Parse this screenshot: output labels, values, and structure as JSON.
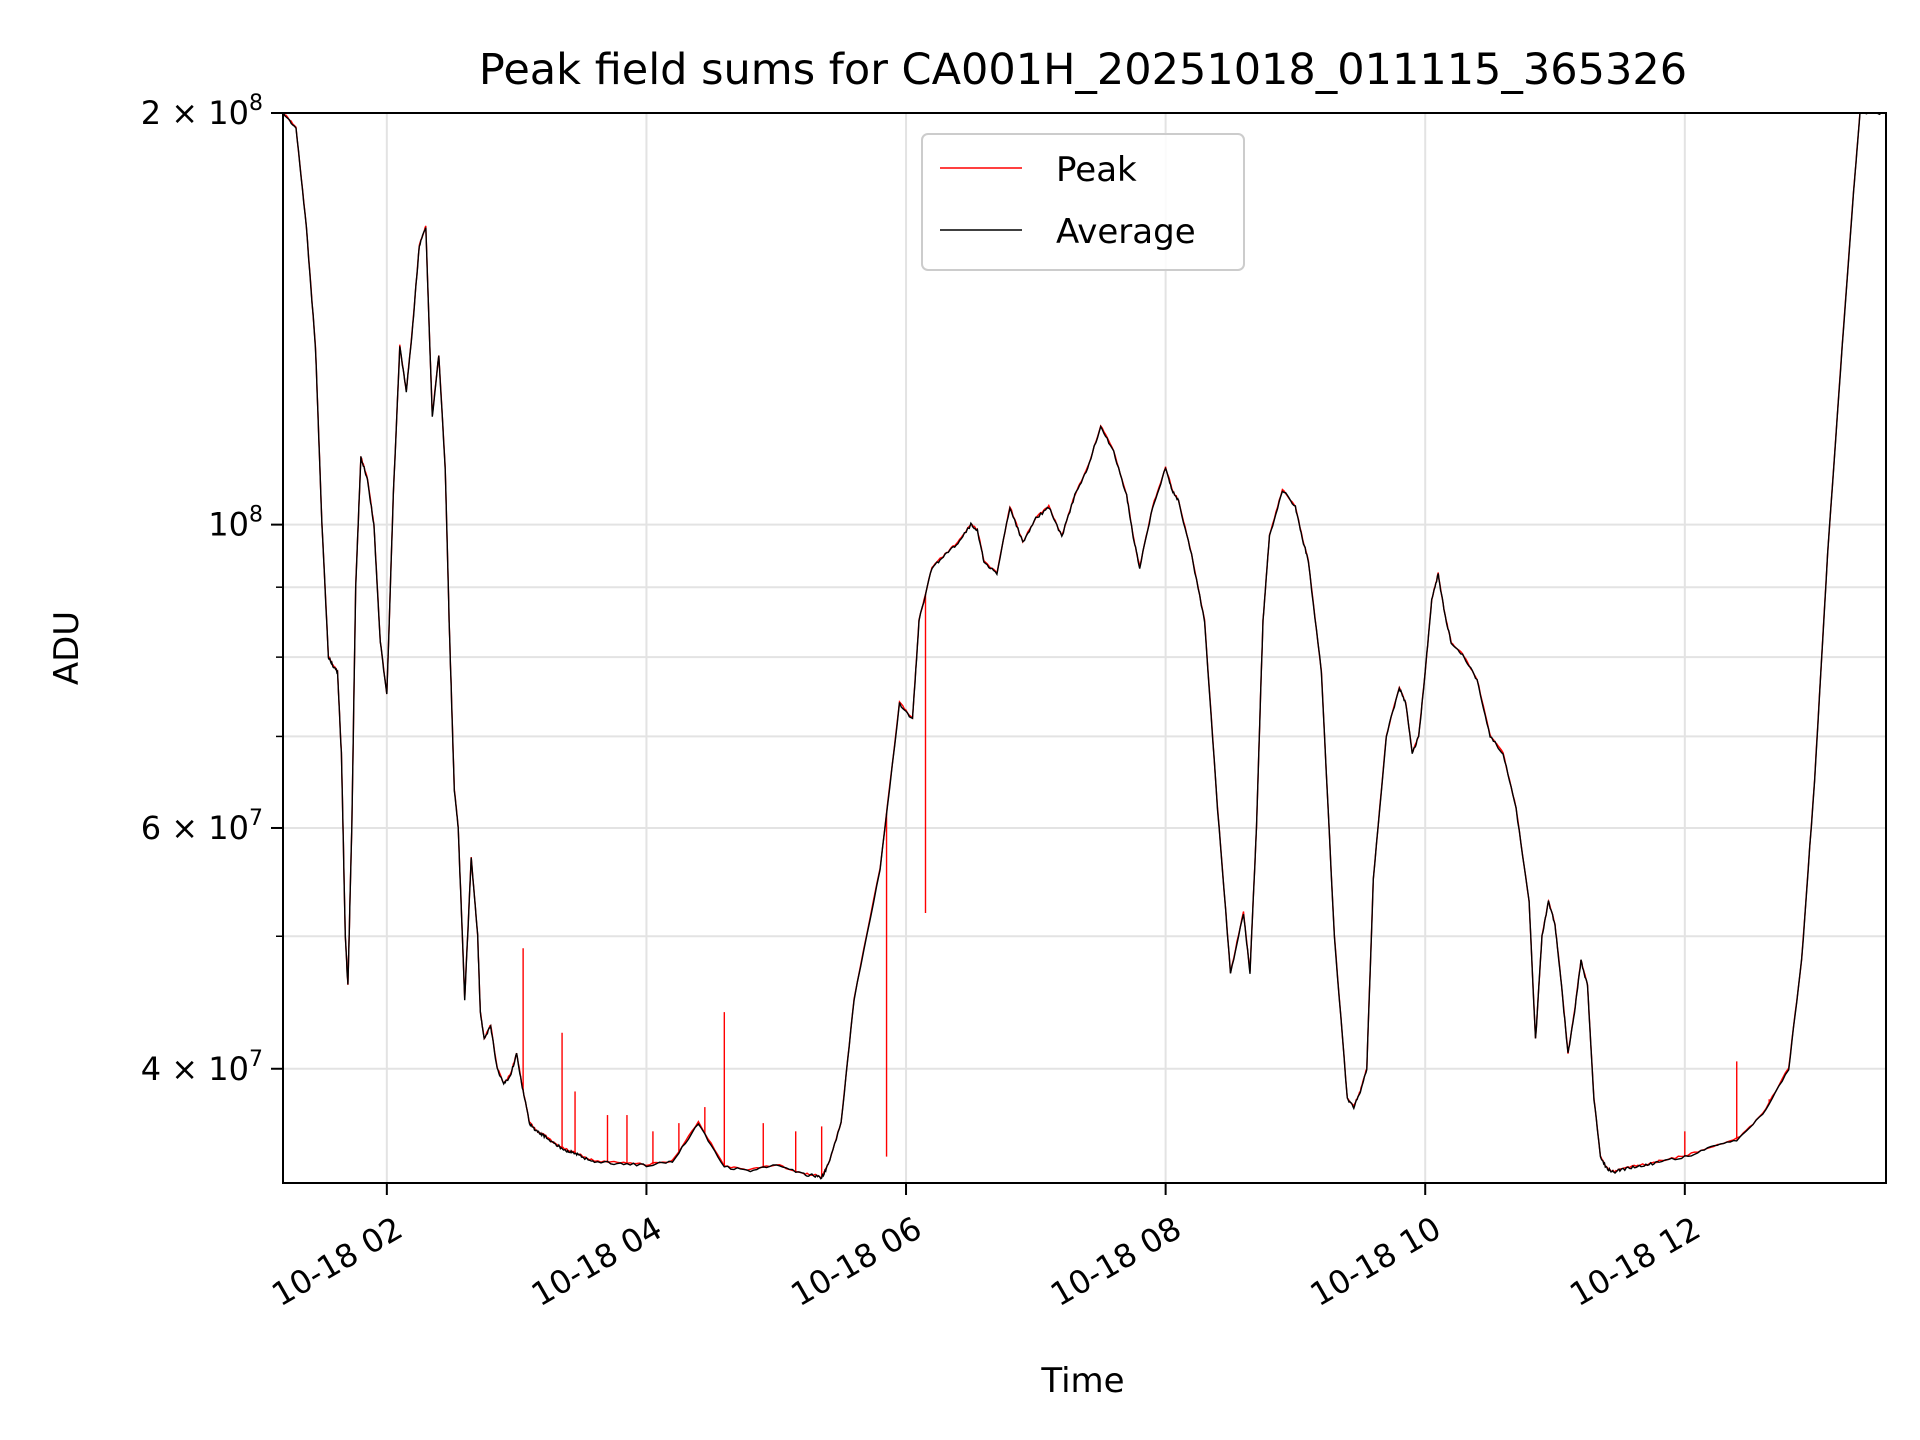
{
  "chart_data": {
    "type": "line",
    "title": "Peak field sums for CA001H_20251018_011115_365326",
    "xlabel": "Time",
    "ylabel": "ADU",
    "yscale": "log",
    "grid": true,
    "legend_position": "top-center",
    "xlim_hours": [
      1.2,
      13.55
    ],
    "ylim": [
      33000000,
      200000000
    ],
    "x_ticks": [
      {
        "hour": 2,
        "label": "10-18 02"
      },
      {
        "hour": 4,
        "label": "10-18 04"
      },
      {
        "hour": 6,
        "label": "10-18 06"
      },
      {
        "hour": 8,
        "label": "10-18 08"
      },
      {
        "hour": 10,
        "label": "10-18 10"
      },
      {
        "hour": 12,
        "label": "10-18 12"
      }
    ],
    "y_ticks": [
      {
        "value": 200000000,
        "mantissa": "2",
        "exponent": "8"
      },
      {
        "value": 100000000,
        "mantissa": "",
        "exponent": "8"
      },
      {
        "value": 60000000,
        "mantissa": "6",
        "exponent": "7"
      },
      {
        "value": 40000000,
        "mantissa": "4",
        "exponent": "7"
      }
    ],
    "y_minor_ticks": [
      90000000,
      80000000,
      70000000,
      50000000
    ],
    "series": [
      {
        "name": "Peak",
        "color": "#ff0000"
      },
      {
        "name": "Average",
        "color": "#000000"
      }
    ],
    "average": {
      "x_hours": [
        1.2,
        1.3,
        1.38,
        1.45,
        1.5,
        1.55,
        1.58,
        1.62,
        1.65,
        1.68,
        1.7,
        1.73,
        1.76,
        1.8,
        1.85,
        1.9,
        1.95,
        2.0,
        2.05,
        2.1,
        2.15,
        2.2,
        2.25,
        2.3,
        2.35,
        2.4,
        2.45,
        2.48,
        2.52,
        2.55,
        2.6,
        2.65,
        2.7,
        2.72,
        2.75,
        2.8,
        2.85,
        2.9,
        2.95,
        3.0,
        3.05,
        3.1,
        3.15,
        3.2,
        3.25,
        3.3,
        3.35,
        3.4,
        3.45,
        3.5,
        3.6,
        3.8,
        4.0,
        4.2,
        4.4,
        4.6,
        4.8,
        5.0,
        5.2,
        5.3,
        5.35,
        5.4,
        5.5,
        5.6,
        5.8,
        5.95,
        6.05,
        6.1,
        6.2,
        6.3,
        6.4,
        6.5,
        6.55,
        6.6,
        6.7,
        6.8,
        6.9,
        7.0,
        7.1,
        7.2,
        7.3,
        7.4,
        7.5,
        7.6,
        7.7,
        7.75,
        7.8,
        7.9,
        8.0,
        8.05,
        8.1,
        8.2,
        8.3,
        8.4,
        8.5,
        8.6,
        8.65,
        8.7,
        8.75,
        8.8,
        8.9,
        9.0,
        9.05,
        9.1,
        9.2,
        9.3,
        9.4,
        9.45,
        9.5,
        9.55,
        9.6,
        9.7,
        9.8,
        9.85,
        9.9,
        9.95,
        10.0,
        10.05,
        10.1,
        10.15,
        10.2,
        10.3,
        10.4,
        10.5,
        10.6,
        10.7,
        10.8,
        10.85,
        10.9,
        10.95,
        11.0,
        11.05,
        11.1,
        11.15,
        11.2,
        11.25,
        11.3,
        11.35,
        11.4,
        11.45,
        11.5,
        11.6,
        11.7,
        11.8,
        12.0,
        12.2,
        12.4,
        12.6,
        12.8,
        12.9,
        13.0,
        13.1,
        13.2,
        13.3,
        13.35,
        13.55
      ],
      "values": [
        200000000,
        195000000,
        165000000,
        135000000,
        100000000,
        80000000,
        79000000,
        78000000,
        68000000,
        50000000,
        46000000,
        60000000,
        90000000,
        112000000,
        108000000,
        100000000,
        82000000,
        75000000,
        105000000,
        135000000,
        125000000,
        140000000,
        160000000,
        165000000,
        120000000,
        133000000,
        110000000,
        85000000,
        64000000,
        60000000,
        45000000,
        57000000,
        50000000,
        44000000,
        42000000,
        43000000,
        40000000,
        39000000,
        39500000,
        41000000,
        38500000,
        36500000,
        36000000,
        35800000,
        35500000,
        35200000,
        35000000,
        34800000,
        34700000,
        34500000,
        34200000,
        34100000,
        34000000,
        34200000,
        36500000,
        33900000,
        33700000,
        34000000,
        33500000,
        33400000,
        33300000,
        34000000,
        36500000,
        45000000,
        56000000,
        74000000,
        72000000,
        85000000,
        93000000,
        95000000,
        97000000,
        100000000,
        99000000,
        94000000,
        92000000,
        103000000,
        97000000,
        101000000,
        103000000,
        98000000,
        105000000,
        110000000,
        118000000,
        113000000,
        105000000,
        98000000,
        93000000,
        103000000,
        110000000,
        106000000,
        104000000,
        95000000,
        85000000,
        62000000,
        47000000,
        52000000,
        47000000,
        60000000,
        85000000,
        98000000,
        106000000,
        103000000,
        98000000,
        94000000,
        78000000,
        50000000,
        38000000,
        37500000,
        38500000,
        40000000,
        55000000,
        70000000,
        76000000,
        74000000,
        68000000,
        70000000,
        78000000,
        88000000,
        92000000,
        86000000,
        82000000,
        80000000,
        77000000,
        70000000,
        68000000,
        62000000,
        53000000,
        42000000,
        50000000,
        53000000,
        51000000,
        46000000,
        41000000,
        44000000,
        48000000,
        46000000,
        38000000,
        34500000,
        33800000,
        33600000,
        33700000,
        33900000,
        34000000,
        34200000,
        34500000,
        35000000,
        35500000,
        37000000,
        40000000,
        48000000,
        65000000,
        95000000,
        130000000,
        175000000,
        200000000,
        200000000
      ]
    },
    "peak_spikes": [
      {
        "hour": 3.05,
        "value": 49000000
      },
      {
        "hour": 3.35,
        "value": 42500000
      },
      {
        "hour": 3.45,
        "value": 38500000
      },
      {
        "hour": 3.7,
        "value": 37000000
      },
      {
        "hour": 3.85,
        "value": 37000000
      },
      {
        "hour": 4.05,
        "value": 36000000
      },
      {
        "hour": 4.25,
        "value": 36500000
      },
      {
        "hour": 4.45,
        "value": 37500000
      },
      {
        "hour": 4.6,
        "value": 44000000
      },
      {
        "hour": 4.9,
        "value": 36500000
      },
      {
        "hour": 5.15,
        "value": 36000000
      },
      {
        "hour": 5.35,
        "value": 36300000
      },
      {
        "hour": 5.85,
        "value": 34500000
      },
      {
        "hour": 6.15,
        "value": 52000000
      },
      {
        "hour": 12.0,
        "value": 36000000
      },
      {
        "hour": 12.4,
        "value": 40500000
      },
      {
        "hour": 12.65,
        "value": 38000000
      }
    ]
  }
}
